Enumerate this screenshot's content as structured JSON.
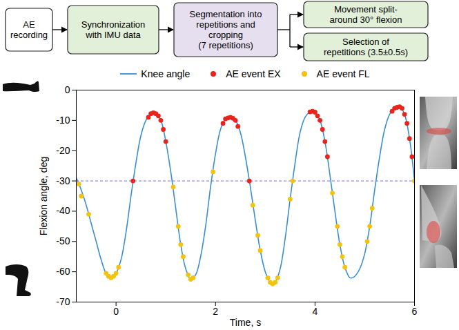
{
  "chart_data": {
    "type": "line",
    "x_label": "Time, s",
    "y_label": "Flexion angle, deg",
    "xlim": [
      -0.8,
      6
    ],
    "ylim": [
      -70,
      0
    ],
    "xticks": [
      0,
      2,
      4,
      6
    ],
    "yticks": [
      -70,
      -60,
      -50,
      -40,
      -30,
      -20,
      -10,
      0
    ],
    "legend": "top",
    "hline": {
      "y": -30,
      "color": "#6f6fe8",
      "line_style": "dashed"
    },
    "series": [
      {
        "name": "Knee angle",
        "type": "line",
        "color": "#3a8fd4",
        "line_style": "solid",
        "x": [
          -0.8,
          -0.7,
          -0.6,
          -0.5,
          -0.4,
          -0.3,
          -0.2,
          -0.1,
          0,
          0.1,
          0.2,
          0.3,
          0.4,
          0.5,
          0.6,
          0.7,
          0.75,
          0.8,
          0.9,
          1.0,
          1.1,
          1.2,
          1.3,
          1.4,
          1.5,
          1.6,
          1.7,
          1.8,
          1.9,
          2.0,
          2.1,
          2.2,
          2.3,
          2.4,
          2.5,
          2.6,
          2.7,
          2.8,
          2.9,
          3.0,
          3.1,
          3.15,
          3.2,
          3.3,
          3.4,
          3.5,
          3.6,
          3.7,
          3.8,
          3.9,
          3.95,
          4.0,
          4.1,
          4.2,
          4.3,
          4.4,
          4.5,
          4.6,
          4.7,
          4.75,
          4.8,
          4.9,
          5.0,
          5.1,
          5.2,
          5.3,
          5.4,
          5.5,
          5.6,
          5.7,
          5.8,
          5.9,
          6.0
        ],
        "values": [
          -29,
          -33,
          -38,
          -44,
          -50,
          -56,
          -60.5,
          -62,
          -60.5,
          -56,
          -47,
          -35,
          -24,
          -15,
          -10,
          -7.8,
          -7.5,
          -7.8,
          -10,
          -17,
          -27,
          -39,
          -51,
          -59,
          -62.5,
          -61,
          -55,
          -45,
          -32,
          -21,
          -13,
          -9.5,
          -9,
          -10,
          -14,
          -22,
          -32,
          -43,
          -53,
          -60,
          -63.5,
          -64,
          -63.5,
          -59,
          -49,
          -36,
          -24,
          -14,
          -9,
          -7.2,
          -7,
          -7.3,
          -10,
          -17,
          -28,
          -40,
          -51,
          -58.5,
          -62,
          -62,
          -61.5,
          -59,
          -54,
          -45,
          -33,
          -22,
          -13,
          -8,
          -6,
          -5.5,
          -8,
          -16,
          -30
        ]
      },
      {
        "name": "AE event EX",
        "type": "scatter",
        "color": "#e8241c",
        "marker": "circle",
        "x": [
          0.34,
          0.65,
          0.7,
          0.75,
          0.8,
          0.85,
          0.9,
          0.95,
          1.0,
          2.15,
          2.2,
          2.25,
          2.3,
          2.35,
          2.4,
          2.45,
          2.68,
          3.9,
          3.95,
          4.0,
          4.05,
          4.1,
          4.15,
          4.2,
          4.25,
          5.55,
          5.6,
          5.65,
          5.7,
          5.75,
          5.8,
          5.85,
          5.9,
          5.95
        ],
        "values": [
          -30,
          -9,
          -7.8,
          -7.5,
          -7.8,
          -8.5,
          -10,
          -13,
          -17,
          -11,
          -9.5,
          -9.2,
          -9,
          -9.3,
          -10,
          -12,
          -30,
          -7.2,
          -7,
          -7.3,
          -8.5,
          -10,
          -13,
          -17,
          -22,
          -7,
          -6,
          -5.7,
          -5.5,
          -6,
          -8,
          -11,
          -16,
          -22
        ]
      },
      {
        "name": "AE event FL",
        "type": "scatter",
        "color": "#f2c40f",
        "marker": "circle",
        "x": [
          -0.75,
          -0.7,
          -0.55,
          -0.2,
          -0.15,
          -0.1,
          -0.05,
          0,
          0.05,
          1.15,
          1.25,
          1.3,
          1.35,
          1.45,
          1.5,
          1.55,
          1.95,
          2.75,
          2.85,
          2.9,
          3.05,
          3.1,
          3.15,
          3.2,
          3.25,
          3.5,
          3.55,
          4.35,
          4.45,
          4.5,
          4.55,
          4.6,
          5.05,
          5.1,
          5.15,
          6.0
        ],
        "values": [
          -31,
          -35,
          -41,
          -60.5,
          -61.5,
          -62,
          -61.5,
          -60.5,
          -58.5,
          -32,
          -45,
          -51,
          -55,
          -61,
          -62.5,
          -62,
          -27,
          -38,
          -48,
          -53,
          -62,
          -63.5,
          -64,
          -63.5,
          -62,
          -36,
          -30,
          -34,
          -45,
          -51,
          -55,
          -58.5,
          -50,
          -45,
          -39,
          -30
        ]
      }
    ]
  },
  "diagram": {
    "nodes": [
      {
        "lines": [
          "AE",
          "recording"
        ],
        "color": "#ffffff"
      },
      {
        "lines": [
          "Synchronization",
          "with IMU data"
        ],
        "color": "#e2efd9"
      },
      {
        "lines": [
          "Segmentation into",
          "repetitions and",
          "cropping",
          "(7 repetitions)"
        ],
        "color": "#e6dff0"
      },
      {
        "lines": [
          "Movement split-",
          "around 30° flexion"
        ],
        "color": "#e2efd9"
      },
      {
        "lines": [
          "Selection of",
          "repetitions (3.5±0.5s)"
        ],
        "color": "#e2efd9"
      }
    ]
  }
}
